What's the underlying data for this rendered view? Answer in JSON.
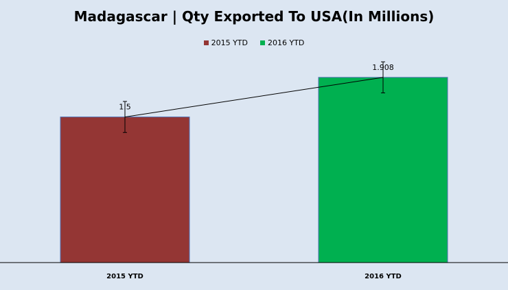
{
  "chart_data": {
    "type": "bar",
    "title": "Madagascar | Qty Exported To USA(In Millions)",
    "categories": [
      "2015 YTD",
      "2016 YTD"
    ],
    "values": [
      1.5,
      1.908
    ],
    "data_labels": [
      "1.5",
      "1.908"
    ],
    "colors": [
      "#943634",
      "#00b050"
    ],
    "legend": [
      "2015 YTD",
      "2016 YTD"
    ],
    "legend_position": "top",
    "trend_line": true,
    "error_bars": true,
    "ylim": [
      0,
      2.5
    ],
    "grid": false,
    "xlabel": "",
    "ylabel": ""
  }
}
